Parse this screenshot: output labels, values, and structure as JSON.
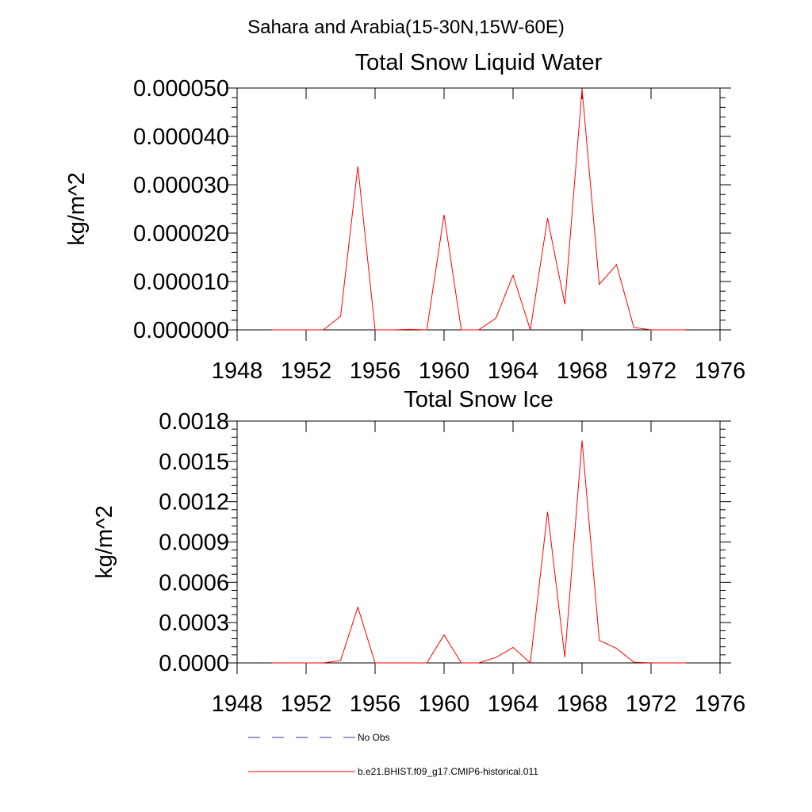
{
  "figure": {
    "suptitle": "Sahara and Arabia(15-30N,15W-60E)"
  },
  "legend": [
    {
      "label": "No Obs",
      "color": "#2a3f8f",
      "dash": "dashed"
    },
    {
      "label": "b.e21.BHIST.f09_g17.CMIP6-historical.011",
      "color": "#ff0000",
      "dash": "solid"
    }
  ],
  "chart_data": [
    {
      "type": "line",
      "title": "Total Snow Liquid Water",
      "ylabel": "kg/m^2",
      "xlabel": "",
      "xlim": [
        1948,
        1976
      ],
      "ylim": [
        0,
        5e-05
      ],
      "xticks": [
        1948,
        1952,
        1956,
        1960,
        1964,
        1968,
        1972,
        1976
      ],
      "xtick_labels": [
        "1948",
        "1952",
        "1956",
        "1960",
        "1964",
        "1968",
        "1972",
        "1976"
      ],
      "yticks": [
        0,
        1e-05,
        2e-05,
        3e-05,
        4e-05,
        5e-05
      ],
      "ytick_labels": [
        "0.000000",
        "0.000010",
        "0.000020",
        "0.000030",
        "0.000040",
        "0.000050"
      ],
      "grid": false,
      "x": [
        1950,
        1951,
        1952,
        1953,
        1954,
        1955,
        1956,
        1957,
        1958,
        1959,
        1960,
        1961,
        1962,
        1963,
        1964,
        1965,
        1966,
        1967,
        1968,
        1969,
        1970,
        1971,
        1972,
        1973,
        1974
      ],
      "series": [
        {
          "name": "b.e21.BHIST.f09_g17.CMIP6-historical.011",
          "color": "#ff0000",
          "values": [
            0,
            0,
            0,
            0,
            2.8e-06,
            3.38e-05,
            0,
            0,
            1e-07,
            0,
            2.38e-05,
            0,
            0,
            2.4e-06,
            1.13e-05,
            0,
            2.31e-05,
            5.3e-06,
            4.98e-05,
            9.4e-06,
            1.35e-05,
            5e-07,
            0,
            0,
            0
          ]
        }
      ]
    },
    {
      "type": "line",
      "title": "Total Snow Ice",
      "ylabel": "kg/m^2",
      "xlabel": "",
      "xlim": [
        1948,
        1976
      ],
      "ylim": [
        0,
        0.0018
      ],
      "xticks": [
        1948,
        1952,
        1956,
        1960,
        1964,
        1968,
        1972,
        1976
      ],
      "xtick_labels": [
        "1948",
        "1952",
        "1956",
        "1960",
        "1964",
        "1968",
        "1972",
        "1976"
      ],
      "yticks": [
        0,
        0.0003,
        0.0006,
        0.0009,
        0.0012,
        0.0015,
        0.0018
      ],
      "ytick_labels": [
        "0.0000",
        "0.0003",
        "0.0006",
        "0.0009",
        "0.0012",
        "0.0015",
        "0.0018"
      ],
      "grid": false,
      "x": [
        1950,
        1951,
        1952,
        1953,
        1954,
        1955,
        1956,
        1957,
        1958,
        1959,
        1960,
        1961,
        1962,
        1963,
        1964,
        1965,
        1966,
        1967,
        1968,
        1969,
        1970,
        1971,
        1972,
        1973,
        1974
      ],
      "series": [
        {
          "name": "b.e21.BHIST.f09_g17.CMIP6-historical.011",
          "color": "#ff0000",
          "values": [
            0,
            0,
            0,
            0,
            1.8e-05,
            0.000415,
            0,
            0,
            0,
            0,
            0.000208,
            0,
            0,
            4e-05,
            0.000115,
            0,
            0.001125,
            4.2e-05,
            0.001655,
            0.000168,
            0.000108,
            5e-06,
            0,
            0,
            0
          ]
        }
      ]
    }
  ]
}
